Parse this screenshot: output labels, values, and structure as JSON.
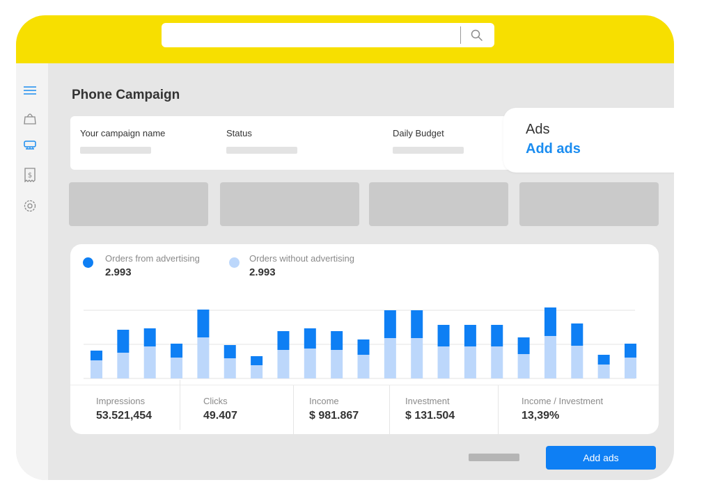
{
  "search": {
    "value": "",
    "placeholder": "",
    "icon": "search-icon"
  },
  "sidebar": {
    "items": [
      {
        "icon": "menu-icon",
        "active": true
      },
      {
        "icon": "shopping-bag-icon",
        "active": false
      },
      {
        "icon": "campaign-icon",
        "active": true
      },
      {
        "icon": "receipt-dollar-icon",
        "active": false
      },
      {
        "icon": "settings-icon",
        "active": false
      }
    ]
  },
  "page_title": "Phone Campaign",
  "info": {
    "campaign_name_label": "Your campaign name",
    "status_label": "Status",
    "daily_budget_label": "Daily Budget"
  },
  "ads_panel": {
    "title": "Ads",
    "link": "Add ads"
  },
  "legend": [
    {
      "label": "Orders from advertising",
      "value": "2.993",
      "color": "#0e7ff4"
    },
    {
      "label": "Orders without advertising",
      "value": "2.993",
      "color": "#bcd7fb"
    }
  ],
  "chart_data": {
    "type": "bar",
    "stacked": true,
    "grid": true,
    "series": [
      {
        "name": "Orders without advertising",
        "color": "#bcd7fb",
        "values": [
          26,
          37,
          46,
          30,
          59,
          29,
          19,
          41,
          43,
          41,
          34,
          58,
          58,
          46,
          46,
          46,
          35,
          61,
          47,
          20,
          30
        ]
      },
      {
        "name": "Orders from advertising",
        "color": "#0e7ff4",
        "values": [
          14,
          33,
          26,
          20,
          40,
          19,
          13,
          27,
          29,
          27,
          22,
          40,
          40,
          31,
          31,
          31,
          24,
          41,
          32,
          14,
          20
        ]
      }
    ]
  },
  "stats": [
    {
      "label": "Impressions",
      "value": "53.521,454"
    },
    {
      "label": "Clicks",
      "value": "49.407"
    },
    {
      "label": "Income",
      "value": "$ 981.867"
    },
    {
      "label": "Investment",
      "value": "$ 131.504"
    },
    {
      "label": "Income / Investment",
      "value": "13,39%"
    }
  ],
  "footer": {
    "add_button": "Add ads"
  },
  "colors": {
    "accent": "#0e7ff4",
    "light": "#bcd7fb",
    "topbar": "#f7df00"
  }
}
